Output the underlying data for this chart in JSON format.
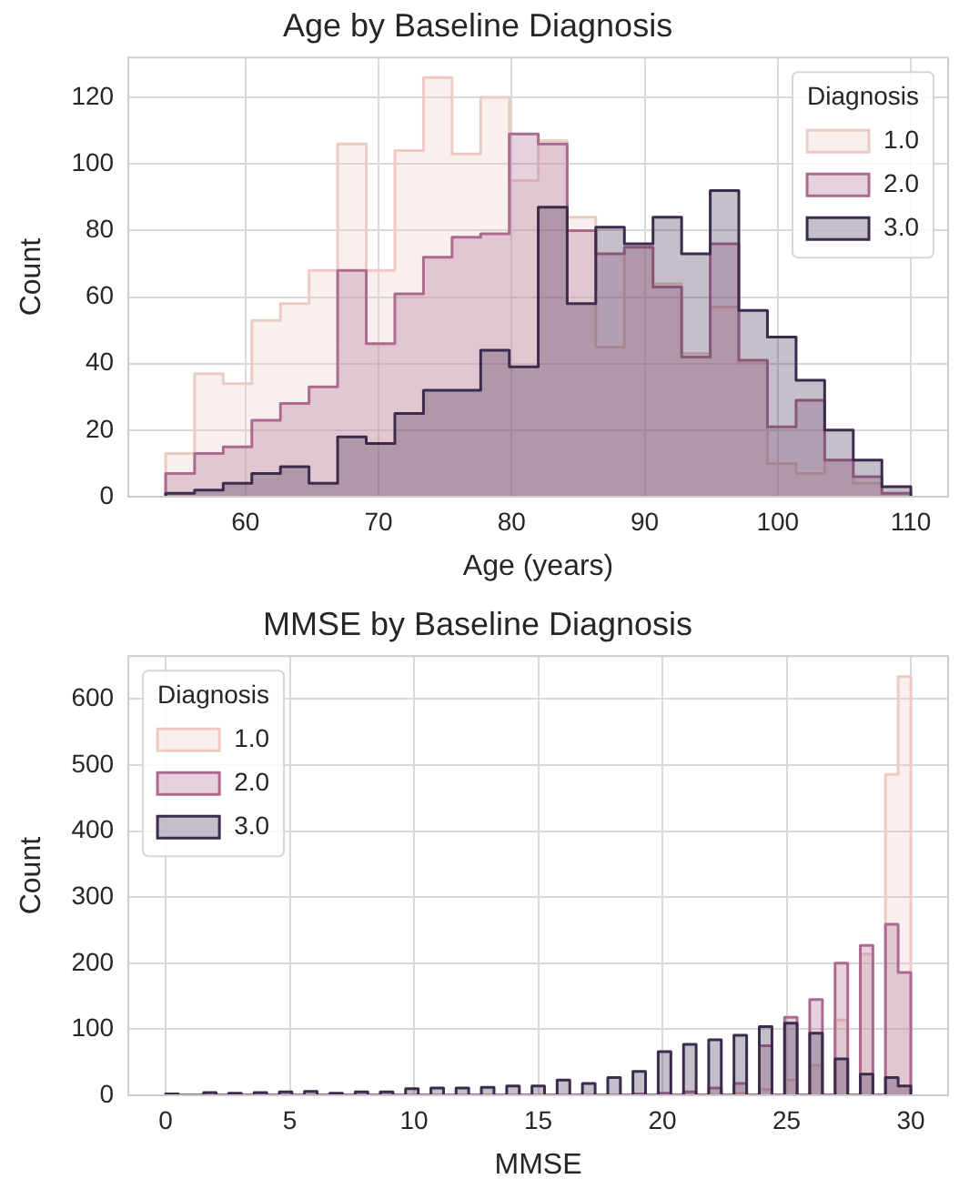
{
  "chart_data": [
    {
      "type": "histogram",
      "title": "Age by Baseline Diagnosis",
      "xlabel": "Age (years)",
      "ylabel": "Count",
      "legend_title": "Diagnosis",
      "bins": [
        54,
        56.2,
        58.3,
        60.5,
        62.6,
        64.8,
        66.9,
        69.1,
        71.2,
        73.4,
        75.5,
        77.7,
        79.8,
        82,
        84.2,
        86.3,
        88.5,
        90.6,
        92.8,
        94.9,
        97.1,
        99.2,
        101.4,
        103.5,
        105.7,
        107.8,
        110
      ],
      "series": [
        {
          "name": "1.0",
          "color": "#eccbc3",
          "values": [
            13,
            37,
            34,
            53,
            58,
            68,
            106,
            68,
            104,
            126,
            103,
            120,
            95,
            107,
            84,
            45,
            75,
            64,
            43,
            57,
            40,
            10,
            7,
            11,
            4,
            0
          ]
        },
        {
          "name": "2.0",
          "color": "#ad6a91",
          "values": [
            7,
            13,
            15,
            23,
            28,
            33,
            68,
            46,
            61,
            72,
            78,
            79,
            109,
            106,
            80,
            73,
            75,
            63,
            42,
            76,
            41,
            21,
            29,
            11,
            6,
            1
          ]
        },
        {
          "name": "3.0",
          "color": "#3b2b4d",
          "values": [
            1,
            2,
            4,
            7,
            9,
            4,
            18,
            16,
            25,
            32,
            32,
            44,
            39,
            87,
            58,
            81,
            76,
            84,
            73,
            92,
            56,
            48,
            35,
            20,
            11,
            3
          ]
        }
      ],
      "xlim": [
        51.2,
        112.8
      ],
      "xticks": [
        60,
        70,
        80,
        90,
        100,
        110
      ],
      "ylim": [
        0,
        132
      ],
      "yticks": [
        0,
        20,
        40,
        60,
        80,
        100,
        120
      ],
      "grid": true,
      "legend": "top right"
    },
    {
      "type": "histogram",
      "title": "MMSE by Baseline Diagnosis",
      "xlabel": "MMSE",
      "ylabel": "Count",
      "legend_title": "Diagnosis",
      "bins": [
        0,
        0.51,
        1.02,
        1.53,
        2.03,
        2.54,
        3.05,
        3.56,
        4.07,
        4.58,
        5.08,
        5.59,
        6.1,
        6.61,
        7.12,
        7.63,
        8.14,
        8.64,
        9.15,
        9.66,
        10.17,
        10.68,
        11.19,
        11.69,
        12.2,
        12.71,
        13.22,
        13.73,
        14.24,
        14.75,
        15.25,
        15.76,
        16.27,
        16.78,
        17.29,
        17.8,
        18.31,
        18.81,
        19.32,
        19.83,
        20.34,
        20.85,
        21.36,
        21.86,
        22.37,
        22.88,
        23.39,
        23.9,
        24.41,
        24.92,
        25.42,
        25.93,
        26.44,
        26.95,
        27.46,
        27.97,
        28.47,
        28.98,
        29.49,
        30
      ],
      "series": [
        {
          "name": "1.0",
          "color": "#eccbc3",
          "values": [
            0,
            0,
            0,
            0,
            0,
            0,
            0,
            0,
            0,
            0,
            0,
            0,
            0,
            0,
            0,
            0,
            0,
            0,
            0,
            0,
            0,
            0,
            0,
            0,
            0,
            0,
            0,
            0,
            0,
            0,
            0,
            0,
            0,
            0,
            0,
            0,
            0,
            0,
            0,
            0,
            0,
            0,
            0,
            0,
            0,
            3,
            0,
            9,
            0,
            23,
            0,
            45,
            0,
            114,
            0,
            214,
            0,
            486,
            634
          ]
        },
        {
          "name": "2.0",
          "color": "#ad6a91",
          "values": [
            0,
            0,
            0,
            0,
            0,
            0,
            0,
            0,
            0,
            0,
            0,
            0,
            0,
            0,
            0,
            0,
            0,
            0,
            0,
            0,
            0,
            0,
            0,
            0,
            0,
            0,
            0,
            0,
            0,
            0,
            0,
            0,
            0,
            0,
            0,
            0,
            0,
            2,
            0,
            3,
            0,
            5,
            0,
            11,
            0,
            18,
            0,
            75,
            0,
            118,
            0,
            145,
            0,
            200,
            0,
            227,
            0,
            259,
            186
          ]
        },
        {
          "name": "3.0",
          "color": "#3b2b4d",
          "values": [
            2,
            0,
            0,
            4,
            0,
            3,
            0,
            4,
            0,
            5,
            0,
            6,
            0,
            3,
            0,
            5,
            0,
            5,
            0,
            10,
            0,
            11,
            0,
            11,
            0,
            12,
            0,
            14,
            0,
            14,
            0,
            23,
            0,
            18,
            0,
            27,
            0,
            36,
            0,
            66,
            0,
            77,
            0,
            84,
            0,
            91,
            0,
            104,
            0,
            109,
            0,
            94,
            0,
            55,
            0,
            32,
            0,
            27,
            14
          ]
        }
      ],
      "xlim": [
        -1.5,
        31.5
      ],
      "xticks": [
        0,
        5,
        10,
        15,
        20,
        25,
        30
      ],
      "ylim": [
        0,
        665
      ],
      "yticks": [
        0,
        100,
        200,
        300,
        400,
        500,
        600
      ],
      "grid": true,
      "legend": "top left"
    }
  ]
}
